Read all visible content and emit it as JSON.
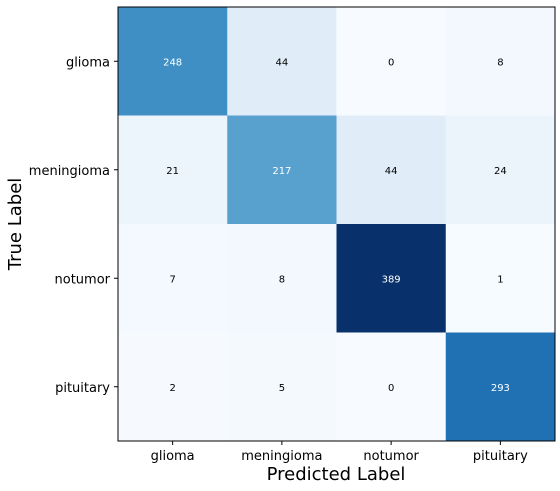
{
  "chart_data": {
    "type": "heatmap",
    "title": "",
    "xlabel": "Predicted Label",
    "ylabel": "True Label",
    "x_categories": [
      "glioma",
      "meningioma",
      "notumor",
      "pituitary"
    ],
    "y_categories": [
      "glioma",
      "meningioma",
      "notumor",
      "pituitary"
    ],
    "values": [
      [
        248,
        44,
        0,
        8
      ],
      [
        21,
        217,
        44,
        24
      ],
      [
        7,
        8,
        389,
        1
      ],
      [
        2,
        5,
        0,
        293
      ]
    ],
    "colormap": "Blues",
    "vmin": 0,
    "vmax": 389,
    "grid": false
  }
}
